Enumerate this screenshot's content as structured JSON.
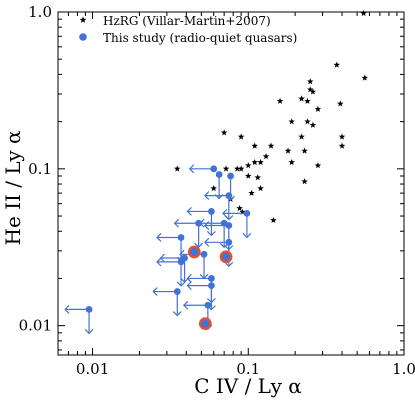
{
  "chart_data": {
    "type": "scatter",
    "title": "",
    "xlabel": "C IV / Ly α",
    "ylabel": "He II / Ly α",
    "xscale": "log",
    "yscale": "log",
    "xlim": [
      0.006,
      1.0
    ],
    "ylim": [
      0.0065,
      1.0
    ],
    "xticks": [
      0.01,
      0.1,
      1.0
    ],
    "xtick_labels": [
      "0.01",
      "0.1",
      "1.0"
    ],
    "yticks": [
      0.01,
      0.1,
      1.0
    ],
    "ytick_labels": [
      "0.01",
      "0.1",
      "1.0"
    ],
    "legend_position": "top-left",
    "series": [
      {
        "name": "HzRG (Villar-Martin+2007)",
        "marker": "star",
        "color": "#000000",
        "points": [
          [
            0.55,
            0.98
          ],
          [
            0.56,
            0.38
          ],
          [
            0.37,
            0.46
          ],
          [
            0.25,
            0.36
          ],
          [
            0.25,
            0.32
          ],
          [
            0.26,
            0.31
          ],
          [
            0.24,
            0.27
          ],
          [
            0.22,
            0.28
          ],
          [
            0.28,
            0.24
          ],
          [
            0.16,
            0.27
          ],
          [
            0.19,
            0.2
          ],
          [
            0.24,
            0.2
          ],
          [
            0.26,
            0.19
          ],
          [
            0.39,
            0.26
          ],
          [
            0.4,
            0.16
          ],
          [
            0.4,
            0.14
          ],
          [
            0.22,
            0.16
          ],
          [
            0.23,
            0.13
          ],
          [
            0.18,
            0.13
          ],
          [
            0.14,
            0.14
          ],
          [
            0.11,
            0.14
          ],
          [
            0.09,
            0.16
          ],
          [
            0.07,
            0.17
          ],
          [
            0.19,
            0.11
          ],
          [
            0.13,
            0.12
          ],
          [
            0.12,
            0.11
          ],
          [
            0.11,
            0.11
          ],
          [
            0.1,
            0.105
          ],
          [
            0.09,
            0.1
          ],
          [
            0.085,
            0.1
          ],
          [
            0.072,
            0.1
          ],
          [
            0.1,
            0.09
          ],
          [
            0.115,
            0.088
          ],
          [
            0.12,
            0.075
          ],
          [
            0.105,
            0.07
          ],
          [
            0.23,
            0.083
          ],
          [
            0.28,
            0.105
          ],
          [
            0.06,
            0.075
          ],
          [
            0.077,
            0.064
          ],
          [
            0.088,
            0.056
          ],
          [
            0.092,
            0.053
          ],
          [
            0.145,
            0.047
          ],
          [
            0.035,
            0.1
          ]
        ]
      },
      {
        "name": "This study (radio-quiet quasars)",
        "marker": "circle",
        "color": "#4372d6",
        "upper_limits": [
          [
            0.0095,
            0.0127,
            "xy"
          ],
          [
            0.037,
            0.0365,
            "xy"
          ],
          [
            0.039,
            0.027,
            "xy"
          ],
          [
            0.037,
            0.0255,
            "xy"
          ],
          [
            0.048,
            0.045,
            "xy"
          ],
          [
            0.052,
            0.0285,
            "xy"
          ],
          [
            0.055,
            0.0135,
            "xy"
          ],
          [
            0.058,
            0.02,
            "xy"
          ],
          [
            0.058,
            0.018,
            "xy"
          ],
          [
            0.07,
            0.045,
            "xy"
          ],
          [
            0.075,
            0.034,
            "xy"
          ],
          [
            0.075,
            0.0435,
            "xy"
          ],
          [
            0.058,
            0.0535,
            "xy"
          ],
          [
            0.098,
            0.052,
            "xy"
          ],
          [
            0.06,
            0.1,
            "x"
          ],
          [
            0.065,
            0.092,
            "y"
          ],
          [
            0.077,
            0.09,
            "y"
          ],
          [
            0.075,
            0.0675,
            "xy"
          ],
          [
            0.035,
            0.0165,
            "xy"
          ]
        ],
        "detections": [
          [
            0.045,
            0.0295
          ],
          [
            0.072,
            0.0275
          ],
          [
            0.053,
            0.0103
          ]
        ],
        "detection_edge_color": "#e8512a"
      }
    ]
  }
}
